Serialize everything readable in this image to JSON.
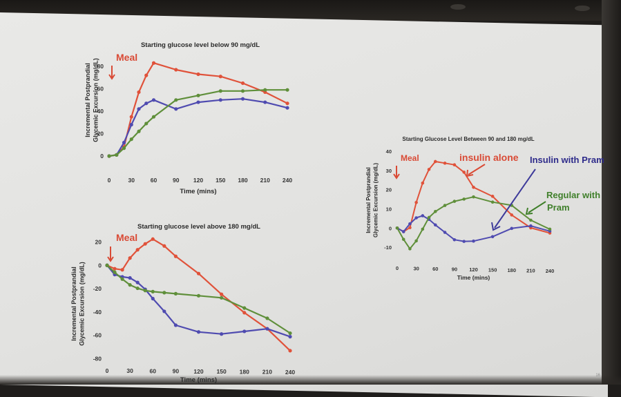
{
  "slide": {
    "page_number": "16"
  },
  "chart_data": [
    {
      "type": "line",
      "title": "Starting glucose level below 90 mg/dL",
      "xlabel": "Time (mins)",
      "ylabel": "Incremental Postprandial Glycemic Excursion (mg/dL)",
      "xlim": [
        0,
        240
      ],
      "ylim": [
        0,
        85
      ],
      "xticks": [
        0,
        30,
        60,
        90,
        120,
        150,
        180,
        210,
        240
      ],
      "yticks": [
        0,
        20,
        40,
        60,
        80
      ],
      "annotation": "Meal",
      "series": [
        {
          "color": "#e0523a",
          "x": [
            0,
            10,
            20,
            30,
            40,
            50,
            60,
            90,
            120,
            150,
            180,
            210,
            240
          ],
          "y": [
            0,
            1,
            8,
            35,
            57,
            72,
            83,
            77,
            73,
            71,
            65,
            57,
            47
          ]
        },
        {
          "color": "#4f4bb0",
          "x": [
            0,
            10,
            20,
            30,
            40,
            50,
            60,
            90,
            120,
            150,
            180,
            210,
            240
          ],
          "y": [
            0,
            1,
            12,
            28,
            42,
            47,
            50,
            42,
            48,
            50,
            51,
            48,
            43
          ]
        },
        {
          "color": "#5f8f3a",
          "x": [
            0,
            10,
            20,
            30,
            40,
            50,
            60,
            90,
            120,
            150,
            180,
            210,
            240
          ],
          "y": [
            0,
            1,
            7,
            15,
            22,
            29,
            35,
            50,
            54,
            58,
            58,
            59,
            59
          ]
        }
      ]
    },
    {
      "type": "line",
      "title": "Starting glucose level above 180 mg/dL",
      "xlabel": "Time (mins)",
      "ylabel": "Incremental Postprandial Glycemic Excursion (mg/dL)",
      "xlim": [
        0,
        240
      ],
      "ylim": [
        -85,
        25
      ],
      "xticks": [
        0,
        30,
        60,
        90,
        120,
        150,
        180,
        210,
        240
      ],
      "yticks": [
        20,
        0,
        -20,
        -40,
        -60,
        -80
      ],
      "annotation": "Meal",
      "series": [
        {
          "color": "#e0523a",
          "x": [
            0,
            10,
            20,
            30,
            40,
            50,
            60,
            75,
            90,
            120,
            150,
            180,
            210,
            240
          ],
          "y": [
            0,
            -3,
            -4,
            6,
            13,
            18,
            22,
            16,
            7,
            -8,
            -26,
            -42,
            -56,
            -75
          ]
        },
        {
          "color": "#4f4bb0",
          "x": [
            0,
            10,
            20,
            30,
            40,
            50,
            60,
            75,
            90,
            120,
            150,
            180,
            210,
            240
          ],
          "y": [
            0,
            -8,
            -10,
            -11,
            -15,
            -21,
            -29,
            -40,
            -52,
            -58,
            -60,
            -58,
            -56,
            -63
          ]
        },
        {
          "color": "#5f8f3a",
          "x": [
            0,
            10,
            20,
            30,
            40,
            50,
            60,
            75,
            90,
            120,
            150,
            180,
            210,
            240
          ],
          "y": [
            0,
            -6,
            -12,
            -17,
            -20,
            -22,
            -23,
            -24,
            -25,
            -27,
            -29,
            -38,
            -47,
            -60
          ]
        }
      ]
    },
    {
      "type": "line",
      "title": "Starting Glucose Level Between 90 and 180 mg/dL",
      "xlabel": "Time (mins)",
      "ylabel": "Incremental Postprandial Glycemic Excursion (mg/dL)",
      "xlim": [
        0,
        240
      ],
      "ylim": [
        -15,
        45
      ],
      "xticks": [
        0,
        30,
        60,
        90,
        120,
        150,
        180,
        210,
        240
      ],
      "yticks": [
        40,
        30,
        20,
        10,
        0,
        -10
      ],
      "annotation": "Meal",
      "callouts": [
        "insulin alone",
        "Insulin with Pram",
        "Regular with Pram"
      ],
      "series": [
        {
          "color": "#e0523a",
          "x": [
            0,
            10,
            20,
            30,
            40,
            50,
            60,
            75,
            90,
            105,
            120,
            150,
            180,
            210,
            240
          ],
          "y": [
            0,
            -2,
            0,
            13,
            23,
            30,
            34,
            33,
            32,
            28,
            20,
            15,
            5,
            -2,
            -5
          ]
        },
        {
          "color": "#4f4bb0",
          "x": [
            0,
            10,
            20,
            30,
            40,
            50,
            60,
            75,
            90,
            105,
            120,
            150,
            180,
            210,
            240
          ],
          "y": [
            0,
            -2,
            2,
            5,
            6,
            4,
            1,
            -3,
            -7,
            -8,
            -8,
            -6,
            -2,
            -1,
            -4
          ]
        },
        {
          "color": "#5f8f3a",
          "x": [
            0,
            10,
            20,
            30,
            40,
            50,
            60,
            75,
            90,
            105,
            120,
            150,
            180,
            210,
            240
          ],
          "y": [
            0,
            -6,
            -11,
            -7,
            -1,
            5,
            8,
            11,
            13,
            14,
            15,
            12,
            10,
            2,
            -3
          ]
        }
      ]
    }
  ]
}
